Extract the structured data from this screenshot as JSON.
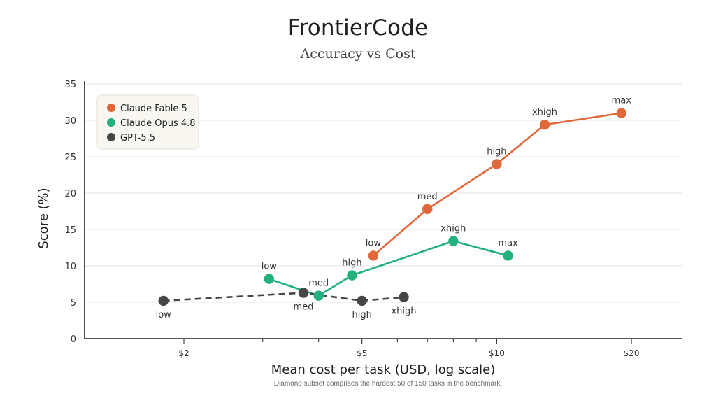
{
  "chart_data": {
    "type": "line",
    "title": "FrontierCode",
    "subtitle": "Accuracy vs Cost",
    "xlabel": "Mean cost per task (USD, log scale)",
    "ylabel": "Score (%)",
    "note": "Diamond subset comprises the hardest 50 of 150 tasks in the benchmark.",
    "x_scale": "log",
    "xlim": [
      1.2,
      26
    ],
    "ylim": [
      0,
      35
    ],
    "x_ticks": [
      {
        "value": 2,
        "label": "$2"
      },
      {
        "value": 5,
        "label": "$5"
      },
      {
        "value": 10,
        "label": "$10"
      },
      {
        "value": 20,
        "label": "$20"
      }
    ],
    "x_minor_ticks": [
      3,
      4,
      6,
      7,
      8,
      9
    ],
    "y_ticks": [
      0,
      5,
      10,
      15,
      20,
      25,
      30,
      35
    ],
    "grid": "horizontal",
    "legend_position": "top-left",
    "series": [
      {
        "name": "Claude Fable 5",
        "color": "#e0683a",
        "dash": false,
        "points": [
          {
            "x": 5.3,
            "y": 11.4,
            "label": "low",
            "label_pos": "above"
          },
          {
            "x": 7.0,
            "y": 17.8,
            "label": "med",
            "label_pos": "above"
          },
          {
            "x": 10.0,
            "y": 24.0,
            "label": "high",
            "label_pos": "above"
          },
          {
            "x": 12.8,
            "y": 29.4,
            "label": "xhigh",
            "label_pos": "above"
          },
          {
            "x": 19.0,
            "y": 31.0,
            "label": "max",
            "label_pos": "above"
          }
        ]
      },
      {
        "name": "Claude Opus 4.8",
        "color": "#22b07d",
        "dash": false,
        "points": [
          {
            "x": 3.1,
            "y": 8.2,
            "label": "low",
            "label_pos": "above"
          },
          {
            "x": 4.0,
            "y": 5.9,
            "label": "med",
            "label_pos": "above"
          },
          {
            "x": 4.75,
            "y": 8.7,
            "label": "high",
            "label_pos": "above"
          },
          {
            "x": 8.0,
            "y": 13.4,
            "label": "xhigh",
            "label_pos": "above"
          },
          {
            "x": 10.6,
            "y": 11.4,
            "label": "max",
            "label_pos": "above"
          }
        ]
      },
      {
        "name": "GPT-5.5",
        "color": "#464646",
        "dash": true,
        "points": [
          {
            "x": 1.8,
            "y": 5.2,
            "label": "low",
            "label_pos": "below"
          },
          {
            "x": 3.7,
            "y": 6.3,
            "label": "med",
            "label_pos": "below"
          },
          {
            "x": 5.0,
            "y": 5.2,
            "label": "high",
            "label_pos": "below"
          },
          {
            "x": 6.2,
            "y": 5.7,
            "label": "xhigh",
            "label_pos": "below"
          }
        ]
      }
    ]
  }
}
